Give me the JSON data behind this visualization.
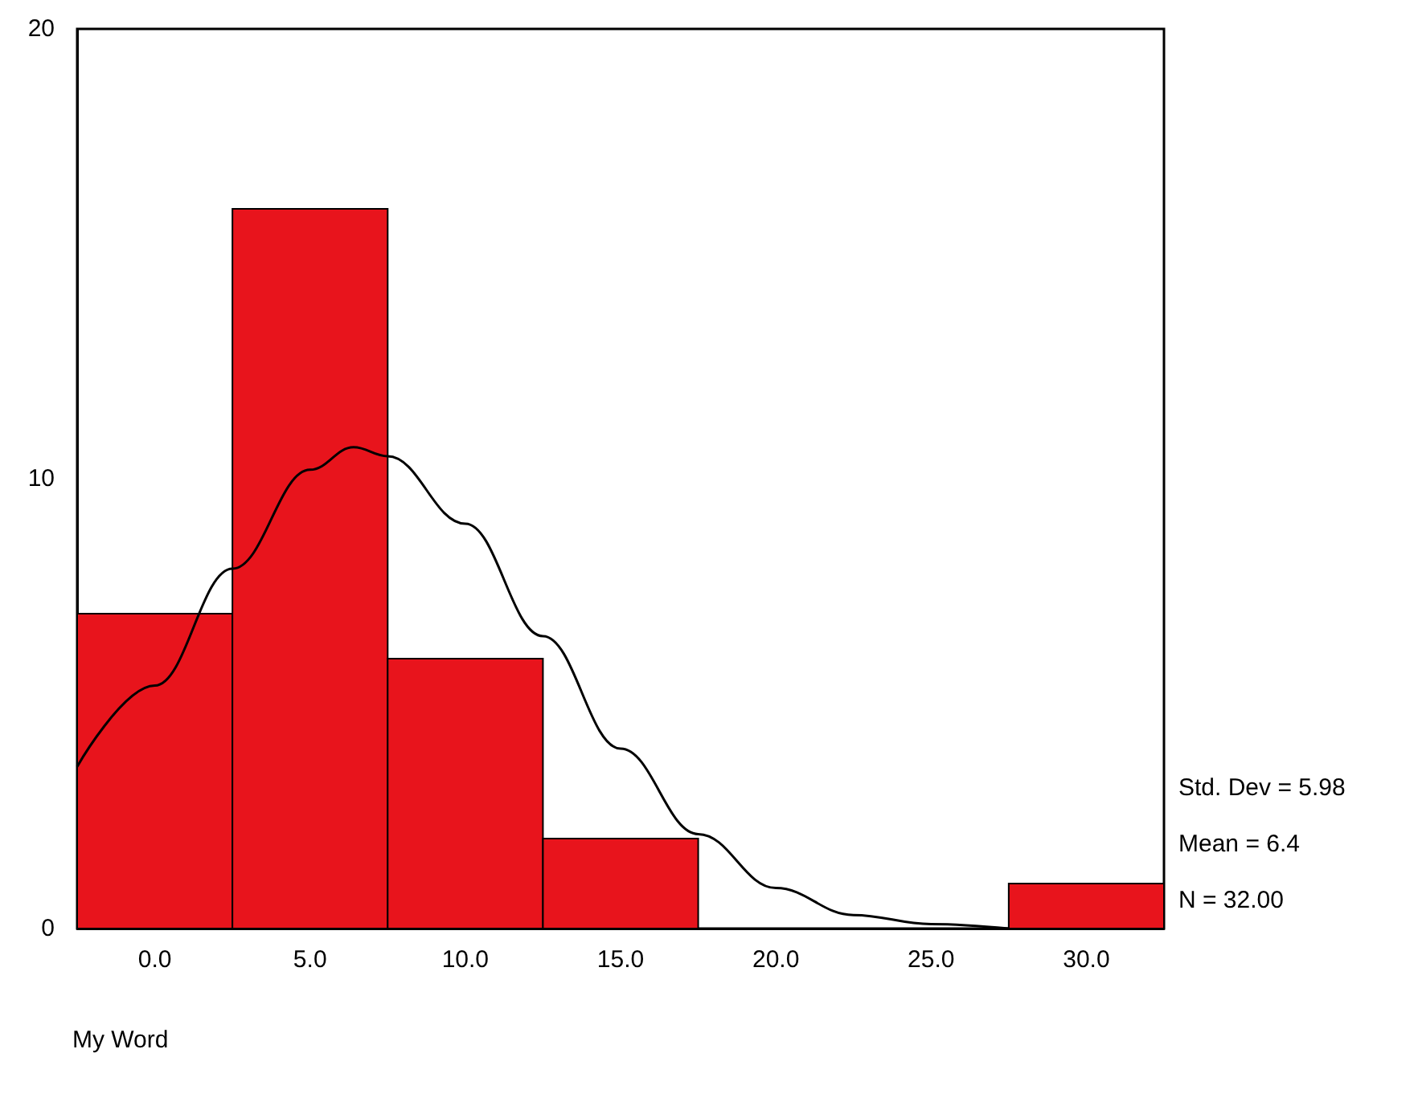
{
  "chart_data": {
    "type": "histogram",
    "bins": [
      -2.5,
      2.5,
      7.5,
      12.5,
      17.5,
      22.5,
      27.5,
      32.5
    ],
    "values": [
      7,
      16,
      6,
      2,
      0,
      0,
      1
    ],
    "color": "#e8141c",
    "xlabel": "My Word",
    "xlim": [
      -2.5,
      32.5
    ],
    "xticks": [
      {
        "value": 0,
        "label": "0.0"
      },
      {
        "value": 5,
        "label": "5.0"
      },
      {
        "value": 10,
        "label": "10.0"
      },
      {
        "value": 15,
        "label": "15.0"
      },
      {
        "value": 20,
        "label": "20.0"
      },
      {
        "value": 25,
        "label": "25.0"
      },
      {
        "value": 30,
        "label": "30.0"
      }
    ],
    "ylim": [
      0,
      20
    ],
    "yticks": [
      0,
      10,
      20
    ],
    "grid": false,
    "series": [
      {
        "type": "line",
        "color": "#000000",
        "marker": "none",
        "line_style": "solid",
        "x": [
          -2.5,
          0,
          2.5,
          5,
          6.4,
          7.5,
          10,
          12.5,
          15,
          17.5,
          20,
          22.5,
          25,
          27.5
        ],
        "values": [
          3.6,
          5.4,
          8.0,
          10.2,
          10.7,
          10.5,
          9.0,
          6.5,
          4.0,
          2.1,
          0.9,
          0.3,
          0.1,
          0.0
        ]
      }
    ],
    "annotations": [
      "Std. Dev = 5.98",
      "Mean = 6.4",
      "N = 32.00"
    ]
  }
}
